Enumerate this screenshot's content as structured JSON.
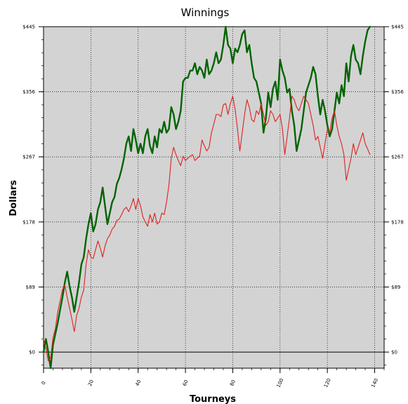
{
  "chart_data": {
    "type": "line",
    "title": "Winnings",
    "xlabel": "Tourneys",
    "ylabel": "Dollars",
    "xlim": [
      0,
      144
    ],
    "ylim": [
      -22,
      445
    ],
    "x_ticks": [
      0,
      20,
      40,
      60,
      80,
      100,
      120,
      140
    ],
    "y_ticks": [
      0,
      89,
      178,
      267,
      356,
      445
    ],
    "y_tick_labels": [
      "$0",
      "$89",
      "$178",
      "$267",
      "$356",
      "$445"
    ],
    "grid": true,
    "colors": {
      "plot_bg": "#d3d3d3",
      "series_1": "#006400",
      "series_2": "#e02020",
      "zero_line": "#000000"
    },
    "series": [
      {
        "values": [
          0,
          18,
          0,
          -22,
          10,
          25,
          40,
          58,
          75,
          95,
          110,
          90,
          75,
          55,
          75,
          95,
          120,
          130,
          155,
          175,
          190,
          165,
          175,
          195,
          205,
          225,
          200,
          175,
          190,
          205,
          212,
          230,
          238,
          250,
          265,
          285,
          295,
          275,
          305,
          290,
          272,
          285,
          272,
          295,
          305,
          282,
          272,
          295,
          280,
          305,
          300,
          315,
          300,
          305,
          335,
          325,
          305,
          315,
          330,
          370,
          375,
          375,
          385,
          385,
          395,
          380,
          390,
          385,
          375,
          400,
          380,
          385,
          395,
          410,
          395,
          400,
          420,
          445,
          420,
          415,
          395,
          415,
          410,
          420,
          435,
          440,
          410,
          420,
          395,
          375,
          370,
          355,
          340,
          300,
          320,
          355,
          335,
          360,
          370,
          345,
          400,
          385,
          375,
          355,
          360,
          330,
          310,
          275,
          290,
          305,
          330,
          355,
          365,
          375,
          390,
          380,
          350,
          325,
          345,
          330,
          310,
          295,
          305,
          330,
          355,
          340,
          365,
          350,
          395,
          370,
          405,
          420,
          400,
          395,
          380,
          405,
          425,
          440,
          445
        ]
      },
      {
        "values": [
          18,
          5,
          -12,
          -8,
          20,
          32,
          55,
          70,
          85,
          92,
          75,
          60,
          45,
          28,
          50,
          60,
          75,
          85,
          120,
          140,
          130,
          128,
          140,
          152,
          142,
          130,
          145,
          155,
          160,
          168,
          172,
          180,
          182,
          188,
          195,
          198,
          192,
          200,
          210,
          195,
          210,
          200,
          185,
          178,
          172,
          188,
          178,
          190,
          175,
          178,
          190,
          188,
          205,
          228,
          265,
          280,
          270,
          262,
          255,
          268,
          262,
          265,
          268,
          270,
          262,
          265,
          268,
          290,
          282,
          275,
          280,
          300,
          312,
          325,
          325,
          322,
          338,
          340,
          325,
          340,
          350,
          332,
          305,
          275,
          300,
          325,
          345,
          335,
          318,
          315,
          330,
          325,
          340,
          325,
          310,
          315,
          330,
          325,
          315,
          320,
          325,
          305,
          270,
          295,
          320,
          350,
          345,
          335,
          330,
          340,
          350,
          345,
          340,
          325,
          310,
          290,
          295,
          280,
          265,
          285,
          305,
          300,
          320,
          330,
          310,
          295,
          285,
          270,
          235,
          250,
          265,
          285,
          270,
          280,
          290,
          300,
          285,
          278,
          270
        ]
      }
    ]
  }
}
